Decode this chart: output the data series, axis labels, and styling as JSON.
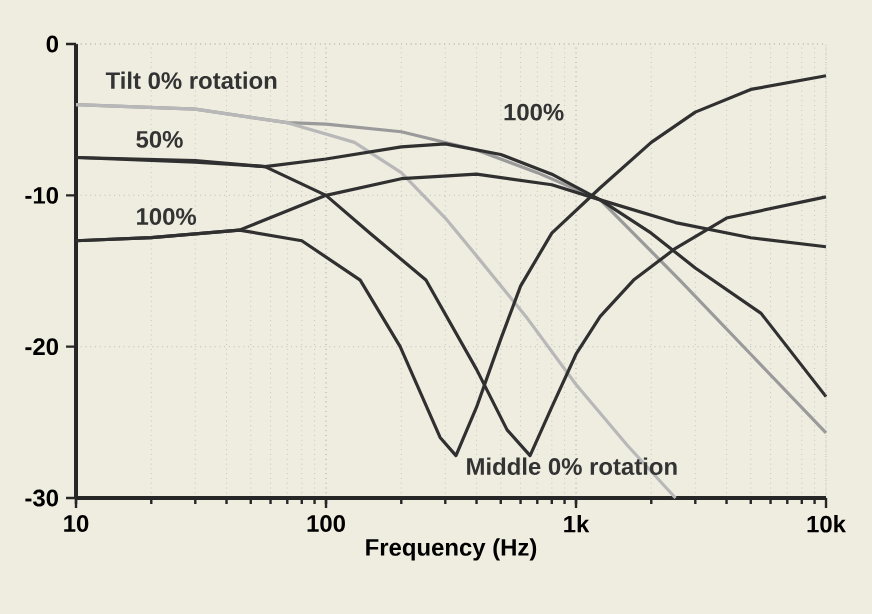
{
  "chart_data": {
    "type": "line",
    "xlabel": "Frequency (Hz)",
    "log": "x",
    "grid": true,
    "xlim": [
      10,
      10000
    ],
    "ylim": [
      -30,
      0
    ],
    "xticks": [
      10,
      100,
      {
        "value": 1000,
        "label": "1k"
      },
      {
        "value": 10000,
        "label": "10k"
      }
    ],
    "yticks": [
      -30,
      -20,
      -10,
      0
    ],
    "series": [
      {
        "color": "#9a9a9a",
        "x": [
          10,
          30,
          70,
          100,
          200,
          400,
          700,
          1250,
          2600,
          5000,
          10000
        ],
        "values": [
          -4,
          -4.3,
          -5.2,
          -5.3,
          -5.8,
          -7,
          -8.5,
          -10.3,
          -15.6,
          -20.5,
          -25.7
        ]
      },
      {
        "color": "#b8b8b8",
        "x": [
          10,
          30,
          70,
          130,
          200,
          300,
          400,
          630,
          1000,
          1600,
          2500
        ],
        "values": [
          -4,
          -4.3,
          -5.2,
          -6.5,
          -8.5,
          -11.5,
          -14,
          -18,
          -22.5,
          -26.5,
          -30
        ]
      },
      {
        "color": "#303030",
        "x": [
          10,
          30,
          57,
          100,
          200,
          300,
          500,
          800,
          1250,
          2000,
          3000,
          5500,
          10000
        ],
        "values": [
          -7.5,
          -7.8,
          -8.1,
          -7.6,
          -6.8,
          -6.6,
          -7.3,
          -8.6,
          -10.3,
          -12.5,
          -14.8,
          -17.8,
          -23.3
        ]
      },
      {
        "color": "#303030",
        "x": [
          10,
          20,
          45,
          100,
          200,
          400,
          800,
          1250,
          2500,
          5000,
          10000
        ],
        "values": [
          -13,
          -12.8,
          -12.3,
          -10,
          -8.9,
          -8.6,
          -9.3,
          -10.3,
          -11.8,
          -12.8,
          -13.4
        ]
      },
      {
        "color": "#303030",
        "x": [
          10,
          20,
          45,
          80,
          137,
          198,
          286,
          331,
          400,
          500,
          600,
          800,
          1250,
          2000,
          3000,
          5000,
          10000
        ],
        "values": [
          -13,
          -12.8,
          -12.3,
          -13,
          -15.6,
          -20,
          -26,
          -27.2,
          -24,
          -19.5,
          -16,
          -12.5,
          -9.5,
          -6.5,
          -4.5,
          -3,
          -2.1
        ]
      },
      {
        "color": "#303030",
        "x": [
          10,
          30,
          57,
          100,
          150,
          251,
          400,
          530,
          655,
          800,
          1000,
          1250,
          1700,
          2500,
          4000,
          10000
        ],
        "values": [
          -7.5,
          -7.7,
          -8.1,
          -10,
          -12.5,
          -15.6,
          -21.5,
          -25.5,
          -27.2,
          -24,
          -20.5,
          -18,
          -15.6,
          -13.5,
          -11.5,
          -10.1
        ]
      }
    ],
    "annotations": [
      "Tilt 0% rotation",
      "50%",
      "100%",
      "100%",
      "Middle 0% rotation"
    ]
  }
}
